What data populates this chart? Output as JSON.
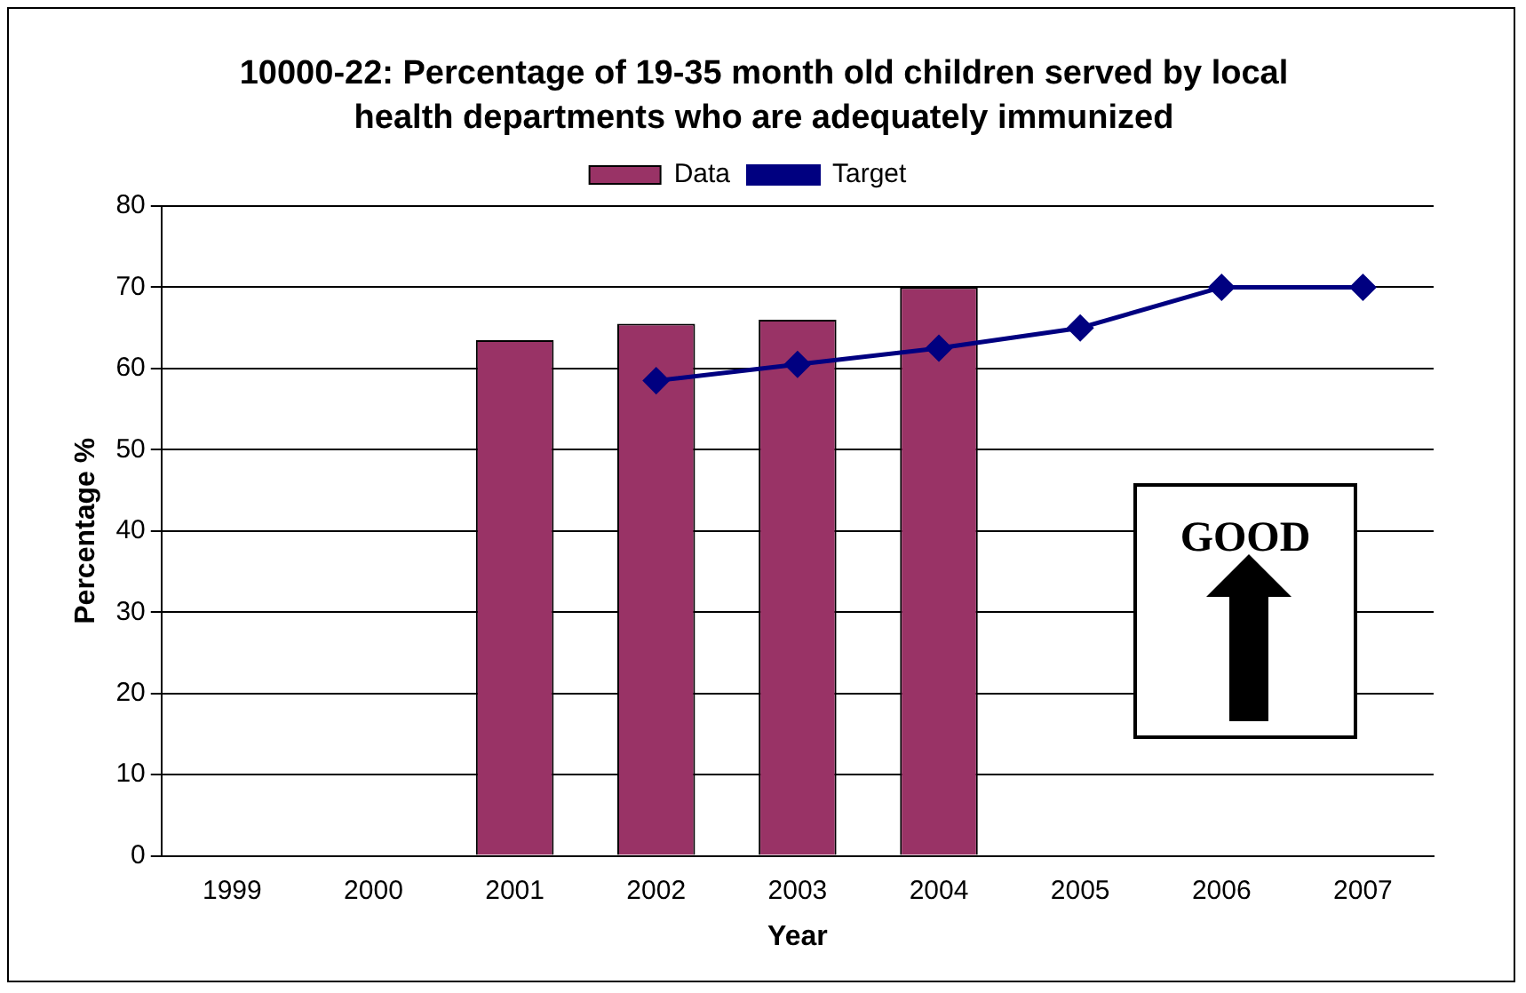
{
  "chart_data": {
    "type": "bar",
    "title": "10000-22:  Percentage of 19-35 month old children served by local health departments who are adequately immunized",
    "xlabel": "Year",
    "ylabel": "Percentage %",
    "categories": [
      "1999",
      "2000",
      "2001",
      "2002",
      "2003",
      "2004",
      "2005",
      "2006",
      "2007"
    ],
    "series": [
      {
        "name": "Data",
        "color": "#993366",
        "values": [
          null,
          null,
          63.5,
          65.5,
          66,
          70,
          null,
          null,
          null
        ]
      },
      {
        "name": "Target",
        "type": "line",
        "color": "#000080",
        "marker": "diamond",
        "values": [
          null,
          null,
          null,
          58.5,
          60.5,
          62.5,
          65,
          70,
          70
        ]
      }
    ],
    "ylim": [
      0,
      80
    ],
    "yticks": [
      0,
      10,
      20,
      30,
      40,
      50,
      60,
      70,
      80
    ],
    "grid": "y",
    "legend": "top",
    "annotations": [
      "GOOD"
    ]
  }
}
